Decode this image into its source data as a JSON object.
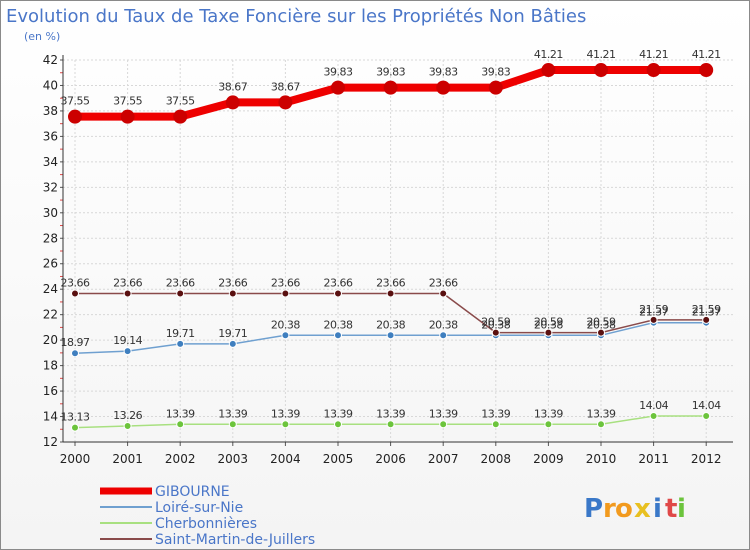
{
  "chart_data": {
    "type": "line",
    "title": "Evolution du Taux de Taxe Foncière sur les Propriétés Non Bâties",
    "subtitle": "(en %)",
    "x": [
      "2000",
      "2001",
      "2002",
      "2003",
      "2004",
      "2005",
      "2006",
      "2007",
      "2008",
      "2009",
      "2010",
      "2011",
      "2012"
    ],
    "ylim": [
      12,
      42
    ],
    "yticks": [
      12,
      14,
      16,
      18,
      20,
      22,
      24,
      26,
      28,
      30,
      32,
      34,
      36,
      38,
      40,
      42
    ],
    "grid": true,
    "legend_position": "bottom-left",
    "series": [
      {
        "name": "GIBOURNE",
        "color": "#ee0000",
        "marker": "#cc0000",
        "values": [
          37.55,
          37.55,
          37.55,
          38.67,
          38.67,
          39.83,
          39.83,
          39.83,
          39.83,
          41.21,
          41.21,
          41.21,
          41.21
        ],
        "labels": [
          "37.55",
          "37.55",
          "37.55",
          "38.67",
          "38.67",
          "39.83",
          "39.83",
          "39.83",
          "39.83",
          "41.21",
          "41.21",
          "41.21",
          "41.21"
        ]
      },
      {
        "name": "Loiré-sur-Nie",
        "color": "#6fa0d0",
        "marker": "#3f7fbf",
        "values": [
          18.97,
          19.14,
          19.71,
          19.71,
          20.38,
          20.38,
          20.38,
          20.38,
          20.38,
          20.38,
          20.38,
          21.37,
          21.37
        ],
        "labels": [
          "18.97",
          "19.14",
          "19.71",
          "19.71",
          "20.38",
          "20.38",
          "20.38",
          "20.38",
          "20.38",
          "20.38",
          "20.38",
          "21.37",
          "21.37"
        ]
      },
      {
        "name": "Cherbonnières",
        "color": "#a8e080",
        "marker": "#6cc43c",
        "values": [
          13.13,
          13.26,
          13.39,
          13.39,
          13.39,
          13.39,
          13.39,
          13.39,
          13.39,
          13.39,
          13.39,
          14.04,
          14.04
        ],
        "labels": [
          "13.13",
          "13.26",
          "13.39",
          "13.39",
          "13.39",
          "13.39",
          "13.39",
          "13.39",
          "13.39",
          "13.39",
          "13.39",
          "14.04",
          "14.04"
        ]
      },
      {
        "name": "Saint-Martin-de-Juillers",
        "color": "#8a4b4b",
        "marker": "#5a1010",
        "values": [
          23.66,
          23.66,
          23.66,
          23.66,
          23.66,
          23.66,
          23.66,
          23.66,
          20.59,
          20.59,
          20.59,
          21.59,
          21.59
        ],
        "labels": [
          "23.66",
          "23.66",
          "23.66",
          "23.66",
          "23.66",
          "23.66",
          "23.66",
          "23.66",
          "20.59",
          "20.59",
          "20.59",
          "21.59",
          "21.59"
        ]
      }
    ]
  },
  "logo": {
    "letters": [
      "P",
      "r",
      "o",
      "x",
      "i",
      "t",
      "i"
    ],
    "colors": [
      "#3a78c8",
      "#f29a1e",
      "#f29a1e",
      "#e8c021",
      "#3a78c8",
      "#e04848",
      "#6cc43c"
    ]
  }
}
